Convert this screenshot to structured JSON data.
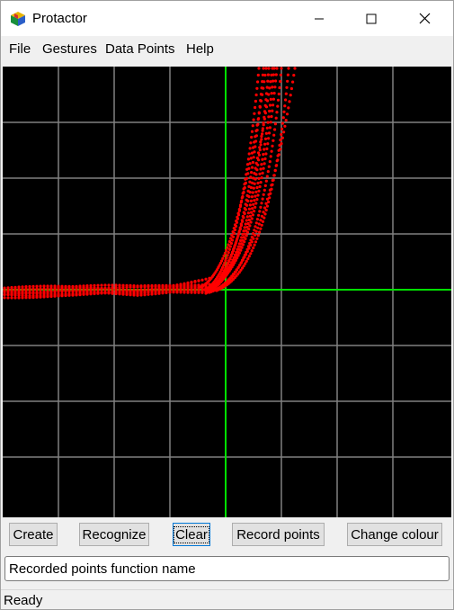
{
  "window": {
    "title": "Protactor",
    "icon": "cube-icon",
    "controls": [
      "minimize-icon",
      "maximize-icon",
      "close-icon"
    ]
  },
  "menu": {
    "items": [
      "File",
      "Gestures",
      "Data Points",
      "Help"
    ]
  },
  "canvas": {
    "background": "#000000",
    "grid_color": "#808080",
    "axis_color": "#00e000",
    "point_color": "#ff0000"
  },
  "buttons": {
    "create": "Create",
    "recognize": "Recognize",
    "clear": "Clear",
    "record": "Record points",
    "change_colour": "Change colour"
  },
  "input": {
    "value": "Recorded points function name"
  },
  "status": {
    "text": "Ready"
  }
}
